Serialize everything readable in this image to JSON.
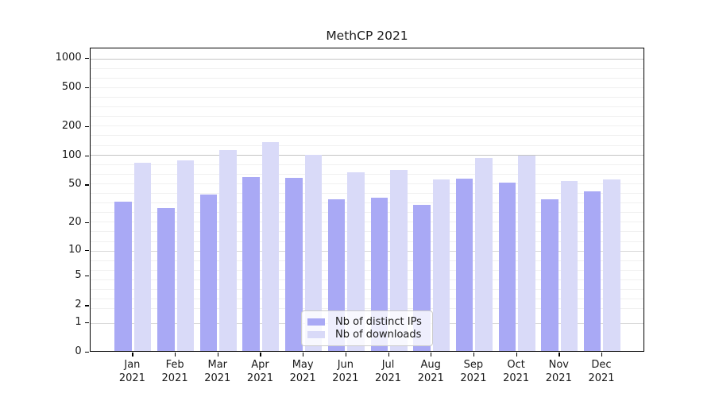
{
  "title": "MethCP 2021",
  "legend": {
    "items": [
      {
        "label": "Nb of distinct IPs",
        "color": "#a9a9f5"
      },
      {
        "label": "Nb of downloads",
        "color": "#d9daf8"
      }
    ]
  },
  "axes": {
    "y_ticks": [
      1000,
      500,
      200,
      100,
      50,
      20,
      10,
      5,
      2,
      1,
      0
    ],
    "x_year": "2021"
  },
  "colors": {
    "distinct_ips": "#a9a9f5",
    "downloads": "#d9daf8",
    "grid_minor": "#f0f0f0",
    "grid_major": "#c4c4c4",
    "grid_mid": "#d8d8d8"
  },
  "chart_data": {
    "type": "bar",
    "title": "MethCP 2021",
    "xlabel": "",
    "ylabel": "",
    "scale": "log1p",
    "ylim": [
      0,
      1000
    ],
    "y_ticks": [
      0,
      1,
      2,
      5,
      10,
      20,
      50,
      100,
      200,
      500,
      1000
    ],
    "grid": true,
    "legend_position": "inside-bottom-center",
    "categories": [
      "Jan 2021",
      "Feb 2021",
      "Mar 2021",
      "Apr 2021",
      "May 2021",
      "Jun 2021",
      "Jul 2021",
      "Aug 2021",
      "Sep 2021",
      "Oct 2021",
      "Nov 2021",
      "Dec 2021"
    ],
    "series": [
      {
        "name": "Nb of distinct IPs",
        "color": "#a9a9f5",
        "values": [
          34,
          29,
          40,
          61,
          60,
          36,
          37,
          31,
          59,
          53,
          36,
          43
        ]
      },
      {
        "name": "Nb of downloads",
        "color": "#d9daf8",
        "values": [
          85,
          90,
          116,
          139,
          104,
          68,
          72,
          57,
          96,
          101,
          55,
          57
        ]
      }
    ]
  }
}
